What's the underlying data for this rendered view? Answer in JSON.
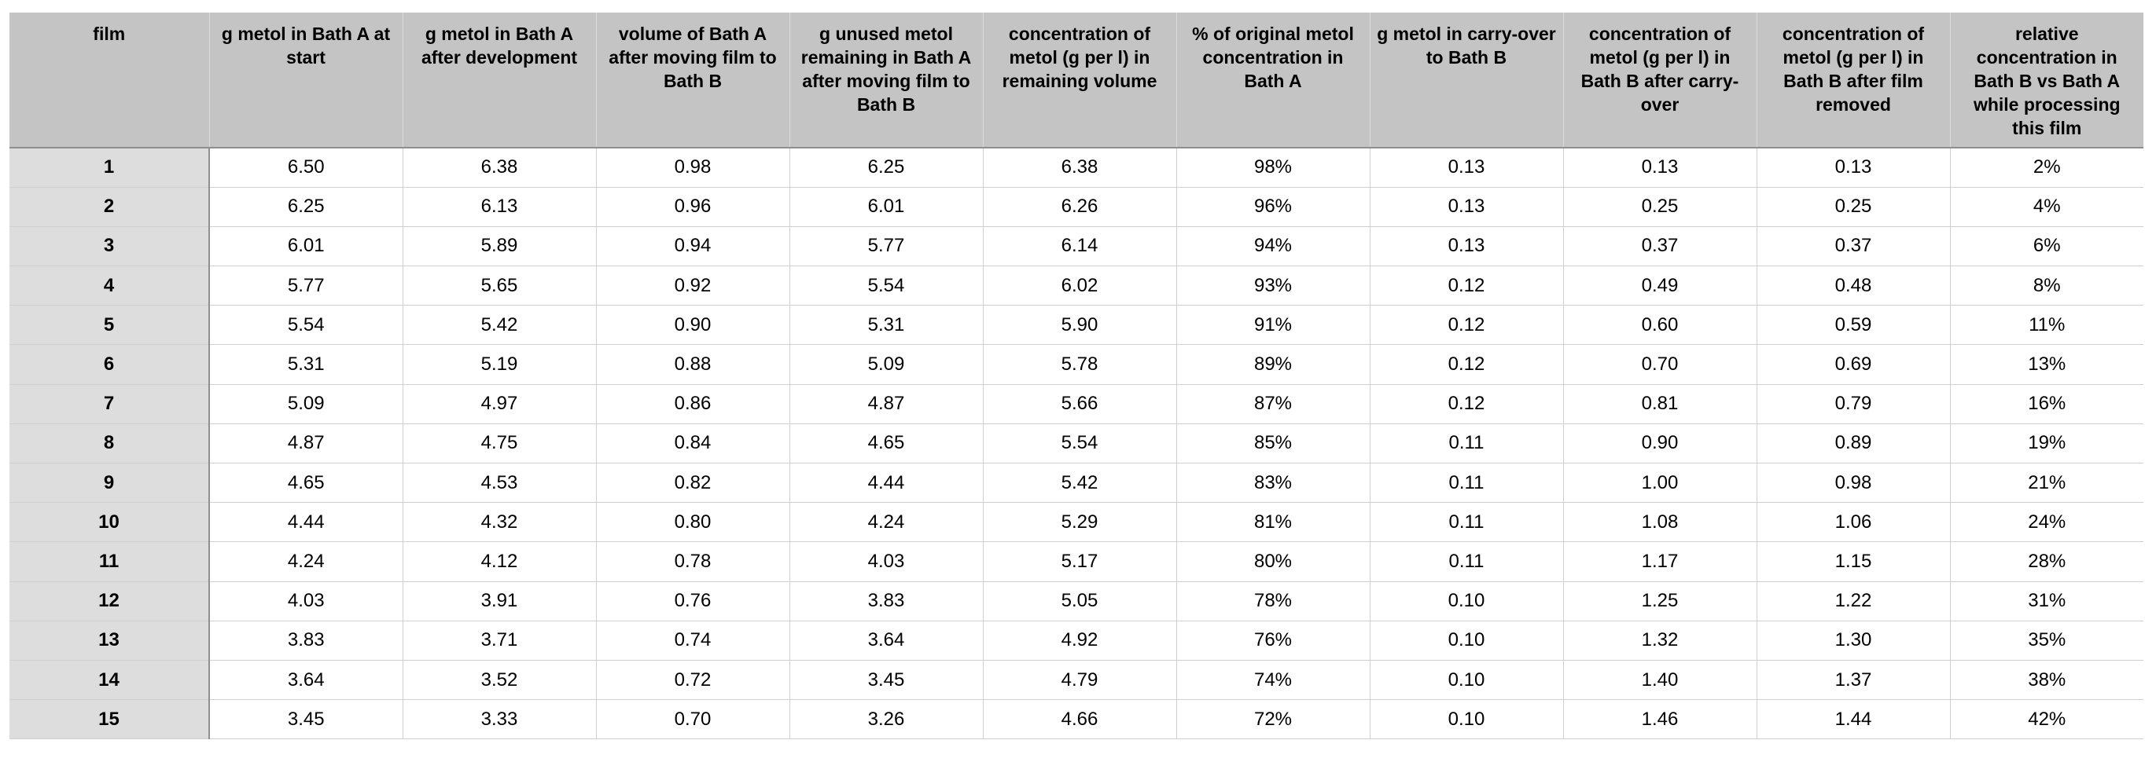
{
  "table": {
    "columns": [
      "film",
      "g metol in Bath A at start",
      "g metol in Bath A after development",
      "volume of Bath A after moving film to Bath B",
      "g unused metol remaining in Bath A after moving film to Bath B",
      "concentration of metol (g per l) in remaining volume",
      "% of original metol concentration in Bath A",
      "g metol in carry-over to Bath B",
      "concentration of metol (g per l) in Bath B after carry-over",
      "concentration of metol (g per l) in Bath B after film removed",
      "relative concentration in Bath B vs Bath A while processing this film"
    ],
    "rows": [
      [
        "1",
        "6.50",
        "6.38",
        "0.98",
        "6.25",
        "6.38",
        "98%",
        "0.13",
        "0.13",
        "0.13",
        "2%"
      ],
      [
        "2",
        "6.25",
        "6.13",
        "0.96",
        "6.01",
        "6.26",
        "96%",
        "0.13",
        "0.25",
        "0.25",
        "4%"
      ],
      [
        "3",
        "6.01",
        "5.89",
        "0.94",
        "5.77",
        "6.14",
        "94%",
        "0.13",
        "0.37",
        "0.37",
        "6%"
      ],
      [
        "4",
        "5.77",
        "5.65",
        "0.92",
        "5.54",
        "6.02",
        "93%",
        "0.12",
        "0.49",
        "0.48",
        "8%"
      ],
      [
        "5",
        "5.54",
        "5.42",
        "0.90",
        "5.31",
        "5.90",
        "91%",
        "0.12",
        "0.60",
        "0.59",
        "11%"
      ],
      [
        "6",
        "5.31",
        "5.19",
        "0.88",
        "5.09",
        "5.78",
        "89%",
        "0.12",
        "0.70",
        "0.69",
        "13%"
      ],
      [
        "7",
        "5.09",
        "4.97",
        "0.86",
        "4.87",
        "5.66",
        "87%",
        "0.12",
        "0.81",
        "0.79",
        "16%"
      ],
      [
        "8",
        "4.87",
        "4.75",
        "0.84",
        "4.65",
        "5.54",
        "85%",
        "0.11",
        "0.90",
        "0.89",
        "19%"
      ],
      [
        "9",
        "4.65",
        "4.53",
        "0.82",
        "4.44",
        "5.42",
        "83%",
        "0.11",
        "1.00",
        "0.98",
        "21%"
      ],
      [
        "10",
        "4.44",
        "4.32",
        "0.80",
        "4.24",
        "5.29",
        "81%",
        "0.11",
        "1.08",
        "1.06",
        "24%"
      ],
      [
        "11",
        "4.24",
        "4.12",
        "0.78",
        "4.03",
        "5.17",
        "80%",
        "0.11",
        "1.17",
        "1.15",
        "28%"
      ],
      [
        "12",
        "4.03",
        "3.91",
        "0.76",
        "3.83",
        "5.05",
        "78%",
        "0.10",
        "1.25",
        "1.22",
        "31%"
      ],
      [
        "13",
        "3.83",
        "3.71",
        "0.74",
        "3.64",
        "4.92",
        "76%",
        "0.10",
        "1.32",
        "1.30",
        "35%"
      ],
      [
        "14",
        "3.64",
        "3.52",
        "0.72",
        "3.45",
        "4.79",
        "74%",
        "0.10",
        "1.40",
        "1.37",
        "38%"
      ],
      [
        "15",
        "3.45",
        "3.33",
        "0.70",
        "3.26",
        "4.66",
        "72%",
        "0.10",
        "1.46",
        "1.44",
        "42%"
      ]
    ]
  },
  "colors": {
    "header_background": "#c4c4c4",
    "row_header_background": "#dddddd",
    "cell_background": "#ffffff",
    "grid_line": "#cfcfcf",
    "header_divider": "#8f8f8f"
  }
}
